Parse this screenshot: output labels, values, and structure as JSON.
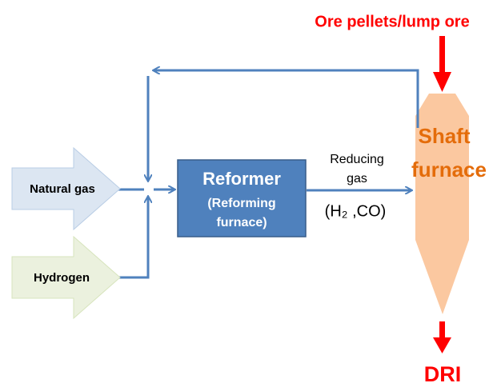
{
  "feed": {
    "label": "Ore pellets/lump ore"
  },
  "shaft_furnace": {
    "lines": [
      "Shaft",
      "furnace"
    ]
  },
  "inputs": [
    {
      "label": "Natural gas"
    },
    {
      "label": "Hydrogen"
    }
  ],
  "reformer": {
    "title": "Reformer",
    "subtitle_lines": [
      "(Reforming",
      "furnace)"
    ]
  },
  "reducing_gas": {
    "lines": [
      "Reducing",
      "gas"
    ],
    "composition": "(H₂ ,CO)"
  },
  "product": {
    "label": "DRI"
  }
}
